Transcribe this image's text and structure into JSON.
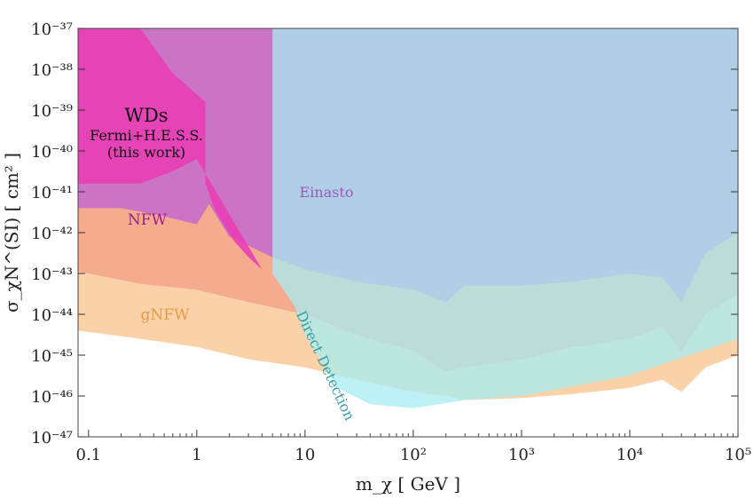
{
  "chart_data": {
    "type": "area",
    "title": "",
    "xlabel": "m_χ [ GeV ]",
    "ylabel": "σ_χN^(SI) [ cm² ]",
    "xscale": "log",
    "yscale": "log",
    "xlim": [
      0.08,
      100000
    ],
    "ylim": [
      1e-47,
      1e-37
    ],
    "x_ticks": [
      {
        "value": 0.1,
        "label": "0.1"
      },
      {
        "value": 1,
        "label": "1"
      },
      {
        "value": 10,
        "label": "10"
      },
      {
        "value": 100,
        "label": "10²"
      },
      {
        "value": 1000,
        "label": "10³"
      },
      {
        "value": 10000,
        "label": "10⁴"
      },
      {
        "value": 100000,
        "label": "10⁵"
      }
    ],
    "y_ticks": [
      {
        "value": 1e-37,
        "label": "10⁻³⁷"
      },
      {
        "value": 1e-38,
        "label": "10⁻³⁸"
      },
      {
        "value": 1e-39,
        "label": "10⁻³⁹"
      },
      {
        "value": 1e-40,
        "label": "10⁻⁴⁰"
      },
      {
        "value": 1e-41,
        "label": "10⁻⁴¹"
      },
      {
        "value": 1e-42,
        "label": "10⁻⁴²"
      },
      {
        "value": 1e-43,
        "label": "10⁻⁴³"
      },
      {
        "value": 1e-44,
        "label": "10⁻⁴⁴"
      },
      {
        "value": 1e-45,
        "label": "10⁻⁴⁵"
      },
      {
        "value": 1e-46,
        "label": "10⁻⁴⁶"
      },
      {
        "value": 1e-47,
        "label": "10⁻⁴⁷"
      }
    ],
    "grid": false,
    "series": [
      {
        "name": "gNFW",
        "color": "#f9b46e",
        "opacity": 0.6,
        "boundary_log": [
          [
            0.08,
            -44.4
          ],
          [
            0.3,
            -44.6
          ],
          [
            1,
            -44.8
          ],
          [
            3,
            -45.1
          ],
          [
            10,
            -45.3
          ],
          [
            30,
            -45.6
          ],
          [
            100,
            -45.9
          ],
          [
            200,
            -46.0
          ],
          [
            300,
            -46.1
          ],
          [
            1000,
            -46.05
          ],
          [
            3000,
            -45.95
          ],
          [
            10000,
            -45.8
          ],
          [
            20000,
            -45.6
          ],
          [
            30000,
            -45.9
          ],
          [
            50000,
            -45.3
          ],
          [
            100000,
            -45.0
          ]
        ]
      },
      {
        "name": "NFW",
        "color": "#f08a78",
        "opacity": 0.55,
        "boundary_log": [
          [
            0.08,
            -42.95
          ],
          [
            0.3,
            -43.25
          ],
          [
            1,
            -43.4
          ],
          [
            3,
            -43.7
          ],
          [
            10,
            -44.0
          ],
          [
            30,
            -44.5
          ],
          [
            100,
            -44.9
          ],
          [
            200,
            -45.4
          ],
          [
            300,
            -45.3
          ],
          [
            1000,
            -45.1
          ],
          [
            3000,
            -44.8
          ],
          [
            10000,
            -44.6
          ],
          [
            20000,
            -44.3
          ],
          [
            30000,
            -44.9
          ],
          [
            50000,
            -44.0
          ],
          [
            100000,
            -43.5
          ]
        ]
      },
      {
        "name": "Einasto",
        "color": "#c36ad0",
        "opacity": 0.85,
        "boundary_log": [
          [
            0.08,
            -41.4
          ],
          [
            0.2,
            -41.4
          ],
          [
            0.5,
            -41.6
          ],
          [
            1,
            -41.8
          ],
          [
            1.3,
            -41.3
          ],
          [
            2,
            -42.1
          ],
          [
            5,
            -42.6
          ],
          [
            10,
            -42.9
          ],
          [
            30,
            -43.2
          ],
          [
            100,
            -43.4
          ],
          [
            200,
            -43.7
          ],
          [
            300,
            -43.3
          ],
          [
            1000,
            -43.3
          ],
          [
            3000,
            -43.2
          ],
          [
            10000,
            -43.0
          ],
          [
            20000,
            -43.1
          ],
          [
            30000,
            -43.7
          ],
          [
            50000,
            -42.5
          ],
          [
            100000,
            -42.0
          ]
        ]
      },
      {
        "name": "WDs Fermi+H.E.S.S. (this work)",
        "color": "#e93fb4",
        "opacity": 0.9,
        "boundary_log": [
          [
            0.08,
            -40.8
          ],
          [
            0.3,
            -40.8
          ],
          [
            0.6,
            -40.5
          ],
          [
            1,
            -40.2
          ],
          [
            1.2,
            -40.8
          ],
          [
            1.5,
            -41.5
          ],
          [
            2.2,
            -42.2
          ],
          [
            3,
            -42.6
          ],
          [
            4,
            -42.9
          ]
        ],
        "left_edge_top_log": [
          [
            0.3,
            -37
          ],
          [
            0.6,
            -38.1
          ],
          [
            1.2,
            -38.8
          ]
        ]
      },
      {
        "name": "Direct Detection",
        "color": "#a8ecf2",
        "opacity": 0.75,
        "boundary_log": [
          [
            5,
            -43.0
          ],
          [
            8,
            -43.8
          ],
          [
            10,
            -44.5
          ],
          [
            20,
            -45.8
          ],
          [
            40,
            -46.2
          ],
          [
            100,
            -46.3
          ],
          [
            300,
            -46.1
          ],
          [
            1000,
            -46.0
          ],
          [
            10000,
            -45.5
          ],
          [
            100000,
            -44.6
          ]
        ]
      }
    ],
    "annotations": [
      {
        "text": "WDs",
        "color": "#111111"
      },
      {
        "text": "Fermi+H.E.S.S.",
        "color": "#111111"
      },
      {
        "text": "(this work)",
        "color": "#111111"
      },
      {
        "text": "Einasto",
        "color": "#9a58b8"
      },
      {
        "text": "NFW",
        "color": "#9a1e8f"
      },
      {
        "text": "gNFW",
        "color": "#e49a45"
      },
      {
        "text": "Direct Detection",
        "color": "#3aa0a4"
      }
    ]
  }
}
